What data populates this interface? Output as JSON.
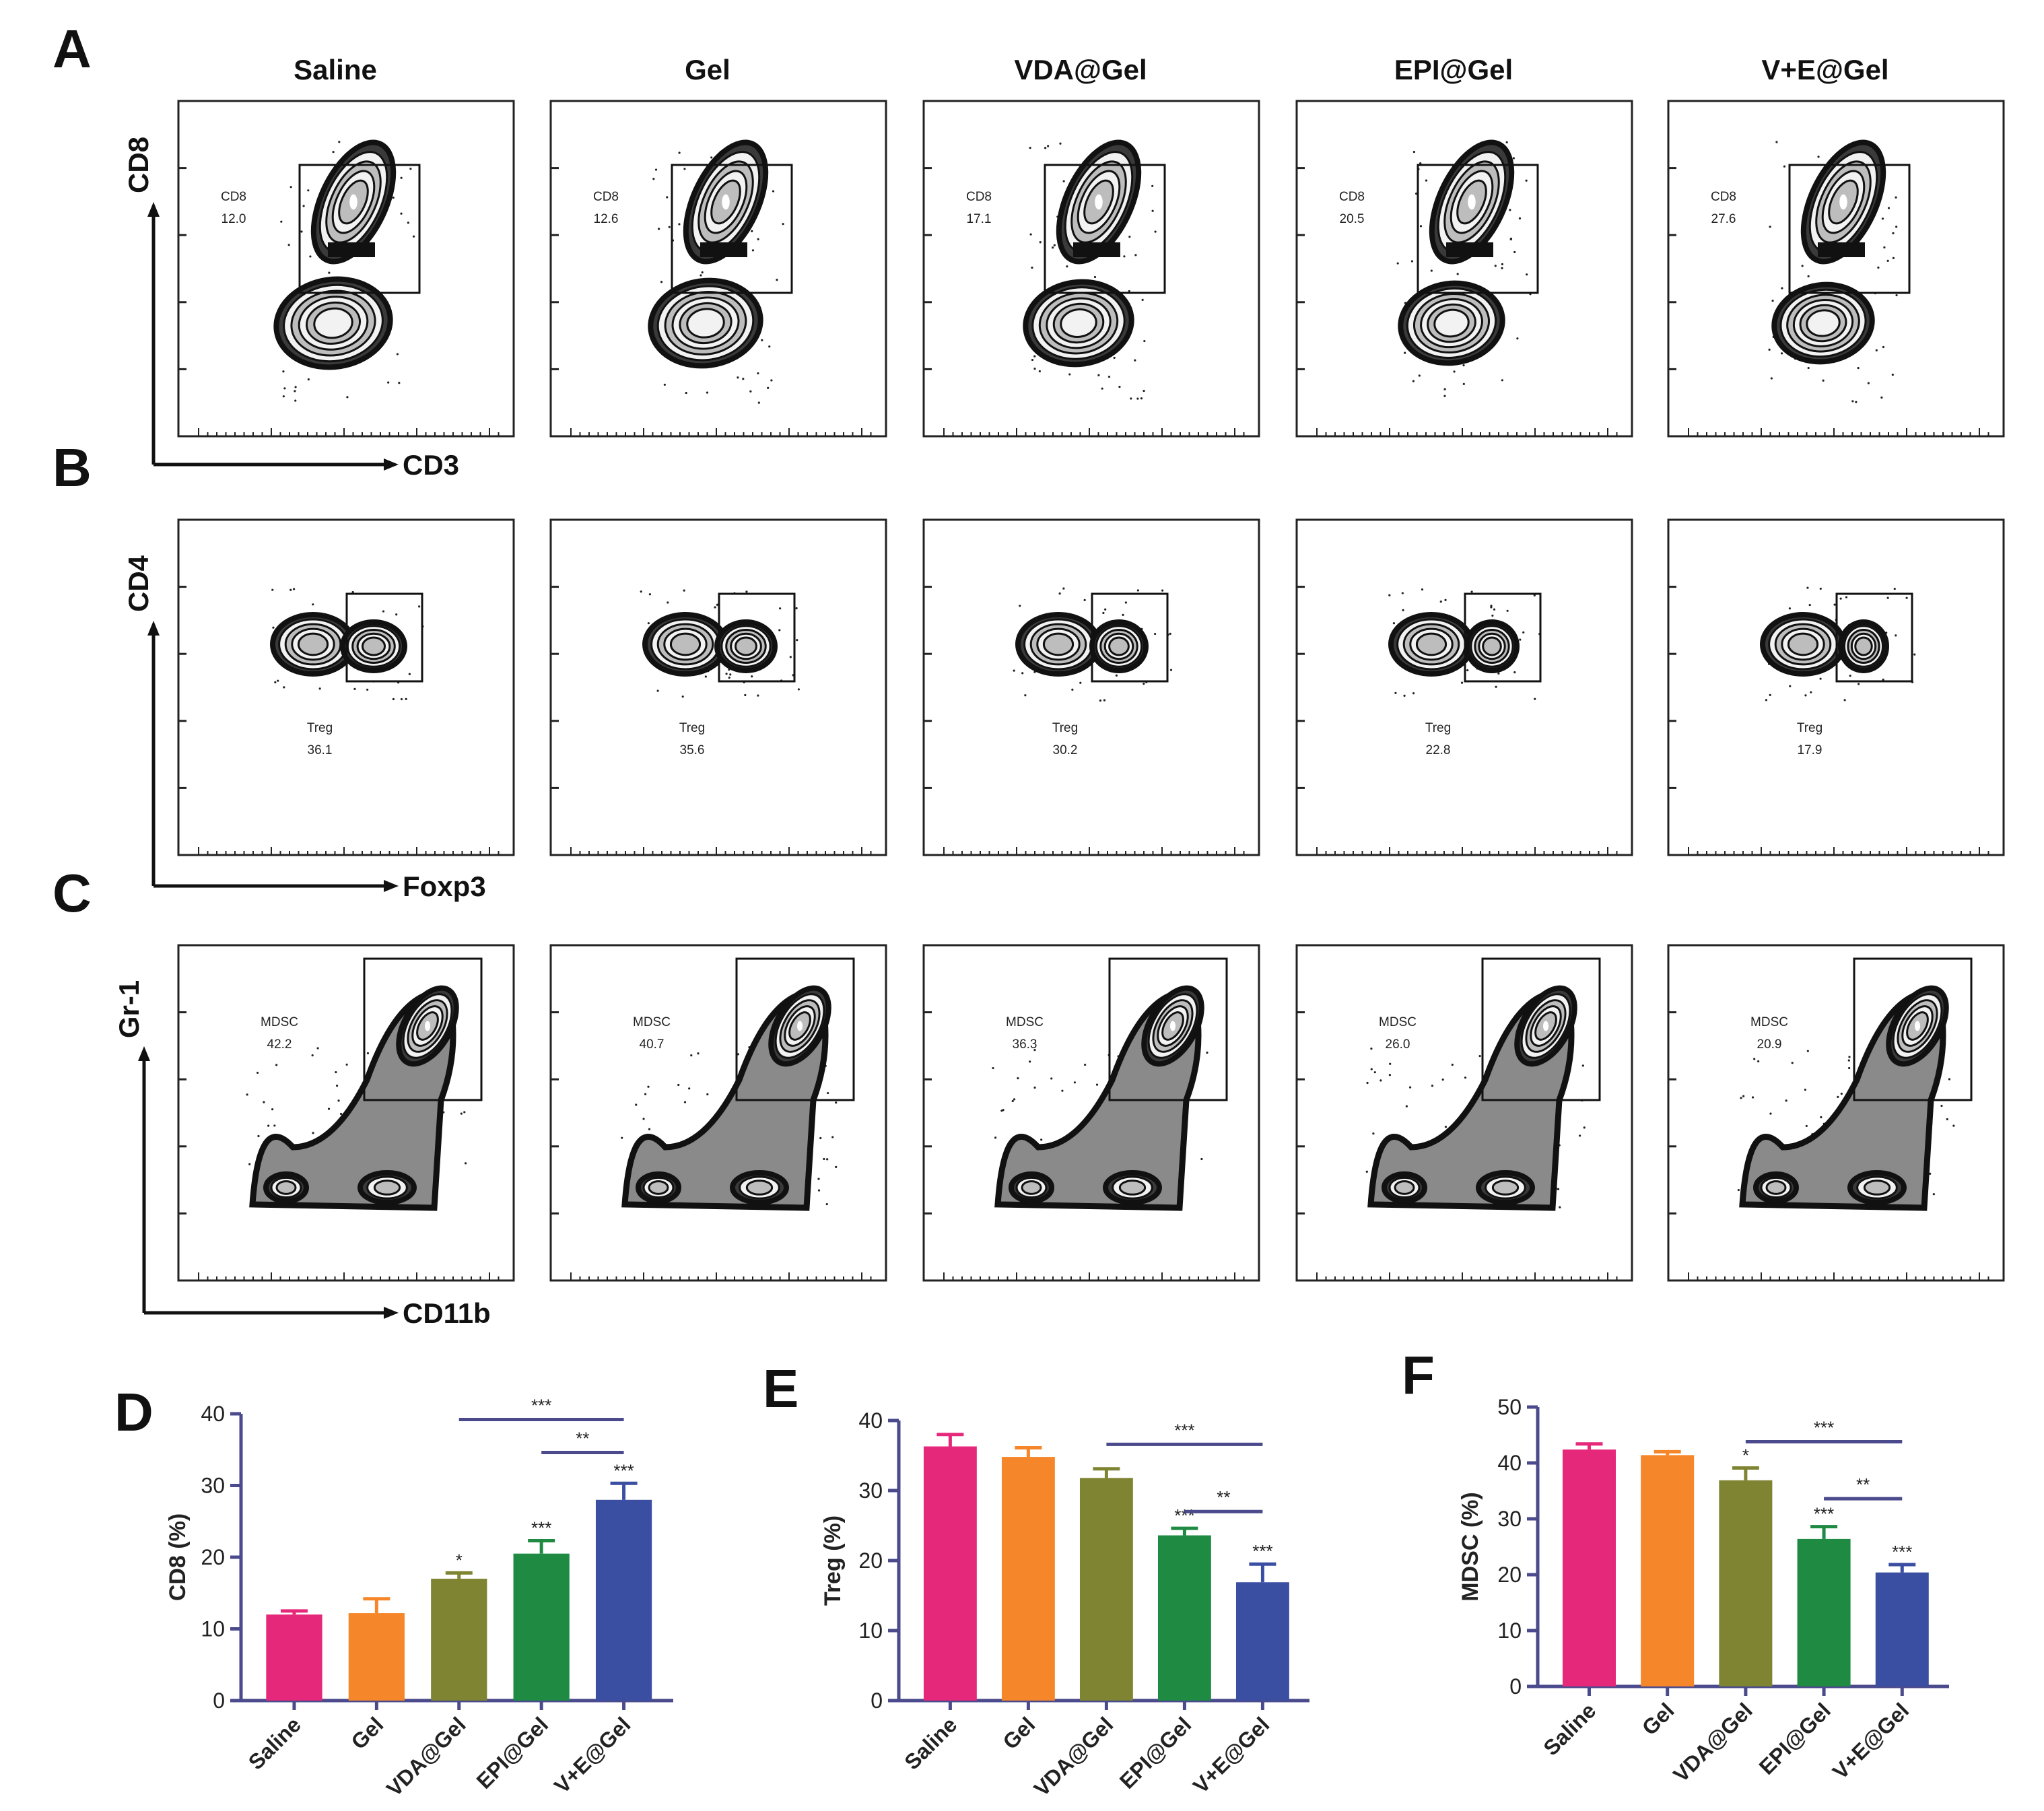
{
  "figure": {
    "groups": [
      "Saline",
      "Gel",
      "VDA@Gel",
      "EPI@Gel",
      "V+E@Gel"
    ],
    "colors": [
      "#e6287b",
      "#f5872a",
      "#7e8431",
      "#1e8a42",
      "#3a4ea2"
    ],
    "sig_line_color": "#4a4a8c"
  },
  "flow": [
    {
      "panel": "A",
      "x_axis": "CD3",
      "y_axis": "CD8",
      "gate_label": "CD8",
      "gate_values": [
        "12.0",
        "12.6",
        "17.1",
        "20.5",
        "27.6"
      ]
    },
    {
      "panel": "B",
      "x_axis": "Foxp3",
      "y_axis": "CD4",
      "gate_label": "Treg",
      "gate_values": [
        "36.1",
        "35.6",
        "30.2",
        "22.8",
        "17.9"
      ]
    },
    {
      "panel": "C",
      "x_axis": "CD11b",
      "y_axis": "Gr-1",
      "gate_label": "MDSC",
      "gate_values": [
        "42.2",
        "40.7",
        "36.3",
        "26.0",
        "20.9"
      ]
    }
  ],
  "chart_data": [
    {
      "panel": "D",
      "type": "bar",
      "title": "",
      "xlabel": "",
      "ylabel": "CD8 (%)",
      "categories": [
        "Saline",
        "Gel",
        "VDA@Gel",
        "EPI@Gel",
        "V+E@Gel"
      ],
      "values": [
        12.0,
        12.2,
        17.0,
        20.5,
        28.0
      ],
      "errors": [
        0.5,
        2.0,
        0.8,
        1.8,
        2.3
      ],
      "bar_labels": [
        "",
        "",
        "*",
        "***",
        "***"
      ],
      "ylim": [
        0,
        40
      ],
      "yticks": [
        0,
        10,
        20,
        30,
        40
      ],
      "comparisons": [
        {
          "from": 2,
          "to": 4,
          "label": "***",
          "y": 39.2
        },
        {
          "from": 3,
          "to": 4,
          "label": "**",
          "y": 34.6
        }
      ]
    },
    {
      "panel": "E",
      "type": "bar",
      "title": "",
      "xlabel": "",
      "ylabel": "Treg (%)",
      "categories": [
        "Saline",
        "Gel",
        "VDA@Gel",
        "EPI@Gel",
        "V+E@Gel"
      ],
      "values": [
        36.3,
        34.8,
        31.8,
        23.6,
        16.9
      ],
      "errors": [
        1.7,
        1.3,
        1.3,
        1.0,
        2.6
      ],
      "bar_labels": [
        "",
        "",
        "",
        "***",
        "***"
      ],
      "ylim": [
        0,
        40
      ],
      "yticks": [
        0,
        10,
        20,
        30,
        40
      ],
      "comparisons": [
        {
          "from": 2,
          "to": 4,
          "label": "***",
          "y": 36.6
        },
        {
          "from": 3,
          "to": 4,
          "label": "**",
          "y": 27.0
        }
      ]
    },
    {
      "panel": "F",
      "type": "bar",
      "title": "",
      "xlabel": "",
      "ylabel": "MDSC (%)",
      "categories": [
        "Saline",
        "Gel",
        "VDA@Gel",
        "EPI@Gel",
        "V+E@Gel"
      ],
      "values": [
        42.4,
        41.4,
        36.9,
        26.4,
        20.4
      ],
      "errors": [
        1.0,
        0.6,
        2.2,
        2.2,
        1.4
      ],
      "bar_labels": [
        "",
        "",
        "*",
        "***",
        "***"
      ],
      "ylim": [
        0,
        50
      ],
      "yticks": [
        0,
        10,
        20,
        30,
        40,
        50
      ],
      "comparisons": [
        {
          "from": 2,
          "to": 4,
          "label": "***",
          "y": 43.8
        },
        {
          "from": 3,
          "to": 4,
          "label": "**",
          "y": 33.6
        }
      ]
    }
  ]
}
